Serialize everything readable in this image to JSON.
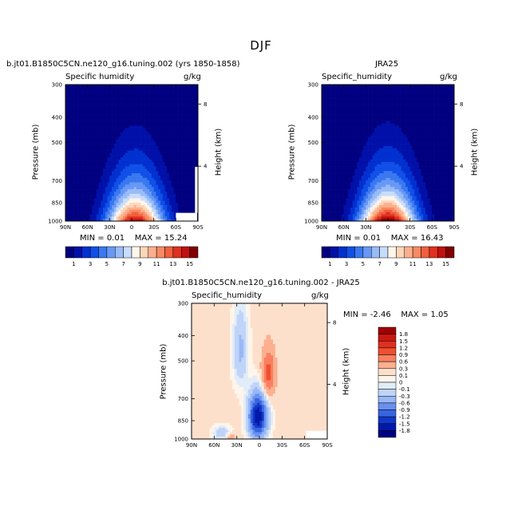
{
  "figure": {
    "title": "DJF"
  },
  "panels": [
    {
      "title": "b.jt01.B1850C5CN.ne120_g16.tuning.002 (yrs 1850-1858)",
      "variable": "Specific humidity",
      "units": "g/kg",
      "ylabel": "Pressure (mb)",
      "y2label": "Height (km)",
      "stats": {
        "min_label": "MIN =",
        "min": "0.01",
        "max_label": "MAX =",
        "max": "15.24"
      }
    },
    {
      "title": "JRA25",
      "variable": "Specific_humidity",
      "units": "g/kg",
      "ylabel": "Pressure (mb)",
      "y2label": "Height (km)",
      "stats": {
        "min_label": "MIN =",
        "min": "0.01",
        "max_label": "MAX =",
        "max": "16.43"
      }
    },
    {
      "title": "b.jt01.B1850C5CN.ne120_g16.tuning.002 - JRA25",
      "variable": "Specific_humidity",
      "units": "g/kg",
      "ylabel": "Pressure (mb)",
      "y2label": "Height (km)",
      "stats": {
        "min_label": "MIN =",
        "min": "-2.46",
        "max_label": "MAX =",
        "max": "1.05"
      }
    }
  ],
  "chart_data": [
    {
      "type": "heatmap",
      "title": "b.jt01.B1850C5CN.ne120_g16.tuning.002 (yrs 1850-1858)",
      "x_tick_labels": [
        "90N",
        "60N",
        "30N",
        "0",
        "30S",
        "60S",
        "90S"
      ],
      "x_values": [
        90,
        60,
        30,
        0,
        -30,
        -60,
        -90
      ],
      "y_tick_labels": [
        "300",
        "400",
        "500",
        "700",
        "850",
        "1000"
      ],
      "y_values": [
        300,
        400,
        500,
        700,
        850,
        1000
      ],
      "y2_tick_labels": [
        "8",
        "4"
      ],
      "y2_values": [
        8,
        4
      ],
      "min": 0.01,
      "max": 15.24,
      "peak_lat": -5,
      "peak_value": 15.24
    },
    {
      "type": "heatmap",
      "title": "JRA25",
      "x_tick_labels": [
        "90N",
        "60N",
        "30N",
        "0",
        "30S",
        "60S",
        "90S"
      ],
      "x_values": [
        90,
        60,
        30,
        0,
        -30,
        -60,
        -90
      ],
      "y_tick_labels": [
        "300",
        "400",
        "500",
        "700",
        "850",
        "1000"
      ],
      "y_values": [
        300,
        400,
        500,
        700,
        850,
        1000
      ],
      "y2_tick_labels": [
        "8",
        "4"
      ],
      "y2_values": [
        8,
        4
      ],
      "min": 0.01,
      "max": 16.43,
      "peak_lat": 0,
      "peak_value": 16.43
    },
    {
      "type": "heatmap",
      "title": "b.jt01.B1850C5CN.ne120_g16.tuning.002 - JRA25",
      "x_tick_labels": [
        "90N",
        "60N",
        "30N",
        "0",
        "30S",
        "60S",
        "90S"
      ],
      "x_values": [
        90,
        60,
        30,
        0,
        -30,
        -60,
        -90
      ],
      "y_tick_labels": [
        "300",
        "400",
        "500",
        "700",
        "850",
        "1000"
      ],
      "y_values": [
        300,
        400,
        500,
        700,
        850,
        1000
      ],
      "y2_tick_labels": [
        "8",
        "4"
      ],
      "y2_values": [
        8,
        4
      ],
      "min": -2.46,
      "max": 1.05
    }
  ],
  "colorbar_abs": {
    "labels": [
      "1",
      "3",
      "5",
      "7",
      "9",
      "11",
      "13",
      "15"
    ],
    "levels": [
      1,
      2,
      3,
      4,
      5,
      6,
      7,
      8,
      9,
      10,
      11,
      12,
      13,
      14,
      15
    ],
    "colors": [
      "#000080",
      "#0010a8",
      "#0030d0",
      "#1050e8",
      "#3a78f0",
      "#6898f5",
      "#98bcf8",
      "#c8dcfb",
      "#fff5ea",
      "#fdd5b8",
      "#fcaf8c",
      "#f88a62",
      "#f0603e",
      "#e03020",
      "#c01010",
      "#800000"
    ]
  },
  "colorbar_diff": {
    "labels": [
      "1.8",
      "1.5",
      "1.2",
      "0.9",
      "0.6",
      "0.3",
      "0.1",
      "0",
      "-0.1",
      "-0.3",
      "-0.6",
      "-0.9",
      "-1.2",
      "-1.5",
      "-1.8"
    ],
    "levels": [
      1.8,
      1.5,
      1.2,
      0.9,
      0.6,
      0.3,
      0.1,
      0,
      -0.1,
      -0.3,
      -0.6,
      -0.9,
      -1.2,
      -1.5,
      -1.8
    ],
    "colors": [
      "#a00000",
      "#c81810",
      "#e03020",
      "#f05030",
      "#f88060",
      "#fcb090",
      "#fde0cc",
      "#fff5ea",
      "#e0ecfa",
      "#c0d4f8",
      "#98b8f4",
      "#6890f0",
      "#3864e0",
      "#1038c8",
      "#0018a8",
      "#000080"
    ]
  }
}
